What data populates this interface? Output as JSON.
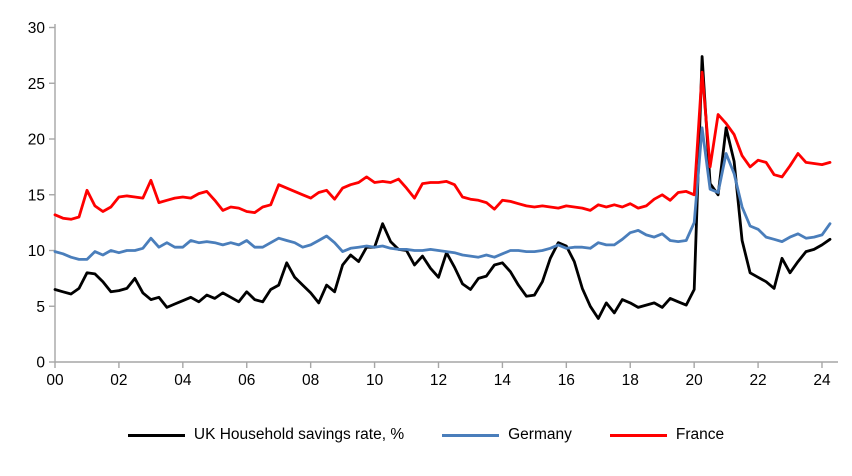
{
  "chart_data": {
    "type": "line",
    "x_start_year": 2000,
    "x_step_years": 0.25,
    "x_ticks": [
      "00",
      "02",
      "04",
      "06",
      "08",
      "10",
      "12",
      "14",
      "16",
      "18",
      "20",
      "22",
      "24"
    ],
    "y_ticks": [
      0,
      5,
      10,
      15,
      20,
      25,
      30
    ],
    "ylim": [
      0,
      30
    ],
    "grid": false,
    "legend_position": "bottom",
    "axis_color": "#a6a6a6",
    "series": [
      {
        "id": "uk",
        "name": "UK Household savings rate, %",
        "color": "#000000",
        "values": [
          6.5,
          6.3,
          6.1,
          6.6,
          8.0,
          7.9,
          7.2,
          6.3,
          6.4,
          6.6,
          7.5,
          6.2,
          5.6,
          5.8,
          4.9,
          5.2,
          5.5,
          5.8,
          5.4,
          6.0,
          5.7,
          6.2,
          5.8,
          5.4,
          6.3,
          5.6,
          5.4,
          6.5,
          6.9,
          8.9,
          7.6,
          6.9,
          6.2,
          5.3,
          6.9,
          6.3,
          8.7,
          9.6,
          9.0,
          10.3,
          10.3,
          12.4,
          10.8,
          10.1,
          10.0,
          8.7,
          9.5,
          8.4,
          7.6,
          9.8,
          8.5,
          7.0,
          6.5,
          7.5,
          7.7,
          8.7,
          8.9,
          8.1,
          6.9,
          5.9,
          6.0,
          7.2,
          9.3,
          10.7,
          10.4,
          9.0,
          6.6,
          5.0,
          3.9,
          5.3,
          4.4,
          5.6,
          5.3,
          4.9,
          5.1,
          5.3,
          4.9,
          5.7,
          5.4,
          5.1,
          6.5,
          27.4,
          16.0,
          15.0,
          21.0,
          18.0,
          10.9,
          8.0,
          7.6,
          7.2,
          6.6,
          9.3,
          8.0,
          9.0,
          9.9,
          10.1,
          10.5,
          11.0
        ]
      },
      {
        "id": "germany",
        "name": "Germany",
        "color": "#4a7ebb",
        "values": [
          9.9,
          9.7,
          9.4,
          9.2,
          9.2,
          9.9,
          9.6,
          10.0,
          9.8,
          10.0,
          10.0,
          10.2,
          11.1,
          10.3,
          10.7,
          10.3,
          10.3,
          10.9,
          10.7,
          10.8,
          10.7,
          10.5,
          10.7,
          10.5,
          10.9,
          10.3,
          10.3,
          10.7,
          11.1,
          10.9,
          10.7,
          10.3,
          10.5,
          10.9,
          11.3,
          10.7,
          9.9,
          10.2,
          10.3,
          10.4,
          10.3,
          10.4,
          10.2,
          10.1,
          10.1,
          10.0,
          10.0,
          10.1,
          10.0,
          9.9,
          9.8,
          9.6,
          9.5,
          9.4,
          9.6,
          9.4,
          9.7,
          10.0,
          10.0,
          9.9,
          9.9,
          10.0,
          10.2,
          10.5,
          10.2,
          10.3,
          10.3,
          10.2,
          10.7,
          10.5,
          10.5,
          11.0,
          11.6,
          11.8,
          11.4,
          11.2,
          11.5,
          10.9,
          10.8,
          10.9,
          12.5,
          21.0,
          15.5,
          15.2,
          18.7,
          16.9,
          13.9,
          12.2,
          11.9,
          11.2,
          11.0,
          10.8,
          11.2,
          11.5,
          11.1,
          11.2,
          11.4,
          12.4
        ]
      },
      {
        "id": "france",
        "name": "France",
        "color": "#ff0000",
        "values": [
          13.2,
          12.9,
          12.8,
          13.0,
          15.4,
          14.0,
          13.5,
          13.9,
          14.8,
          14.9,
          14.8,
          14.7,
          16.3,
          14.3,
          14.5,
          14.7,
          14.8,
          14.7,
          15.1,
          15.3,
          14.5,
          13.6,
          13.9,
          13.8,
          13.5,
          13.4,
          13.9,
          14.1,
          15.9,
          15.6,
          15.3,
          15.0,
          14.7,
          15.2,
          15.4,
          14.6,
          15.6,
          15.9,
          16.1,
          16.6,
          16.1,
          16.2,
          16.1,
          16.4,
          15.6,
          14.7,
          16.0,
          16.1,
          16.1,
          16.2,
          15.9,
          14.8,
          14.6,
          14.5,
          14.3,
          13.7,
          14.5,
          14.4,
          14.2,
          14.0,
          13.9,
          14.0,
          13.9,
          13.8,
          14.0,
          13.9,
          13.8,
          13.6,
          14.1,
          13.9,
          14.1,
          13.9,
          14.2,
          13.8,
          14.0,
          14.6,
          15.0,
          14.5,
          15.2,
          15.3,
          15.0,
          26.0,
          17.5,
          22.2,
          21.4,
          20.4,
          18.5,
          17.5,
          18.1,
          17.9,
          16.8,
          16.6,
          17.6,
          18.7,
          17.9,
          17.8,
          17.7,
          17.9
        ]
      }
    ]
  },
  "legend": {
    "uk_label": "UK Household savings rate, %",
    "germany_label": "Germany",
    "france_label": "France"
  }
}
